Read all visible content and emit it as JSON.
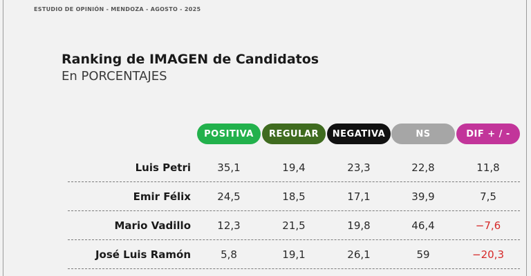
{
  "header": "ESTUDIO DE OPINIÓN - MENDOZA - AGOSTO - 2025",
  "chart_data": {
    "type": "table",
    "title": "Ranking de IMAGEN de Candidatos",
    "subtitle": "En PORCENTAJES",
    "columns": [
      {
        "key": "positiva",
        "label": "POSITIVA",
        "color": "#22b14c"
      },
      {
        "key": "regular",
        "label": "REGULAR",
        "color": "#3f6b1f"
      },
      {
        "key": "negativa",
        "label": "NEGATIVA",
        "color": "#111111"
      },
      {
        "key": "ns",
        "label": "NS",
        "color": "#a6a6a6"
      },
      {
        "key": "dif",
        "label": "DIF + / -",
        "color": "#c2359a"
      }
    ],
    "rows": [
      {
        "name": "Luis Petri",
        "values": [
          "35,1",
          "19,4",
          "23,3",
          "22,8",
          "11,8"
        ]
      },
      {
        "name": "Emir Félix",
        "values": [
          "24,5",
          "18,5",
          "17,1",
          "39,9",
          "7,5"
        ]
      },
      {
        "name": "Mario Vadillo",
        "values": [
          "12,3",
          "21,5",
          "19,8",
          "46,4",
          "−7,6"
        ]
      },
      {
        "name": "José Luis Ramón",
        "values": [
          "5,8",
          "19,1",
          "26,1",
          "59",
          "−20,3"
        ]
      }
    ],
    "negative_color": "#d62828"
  }
}
